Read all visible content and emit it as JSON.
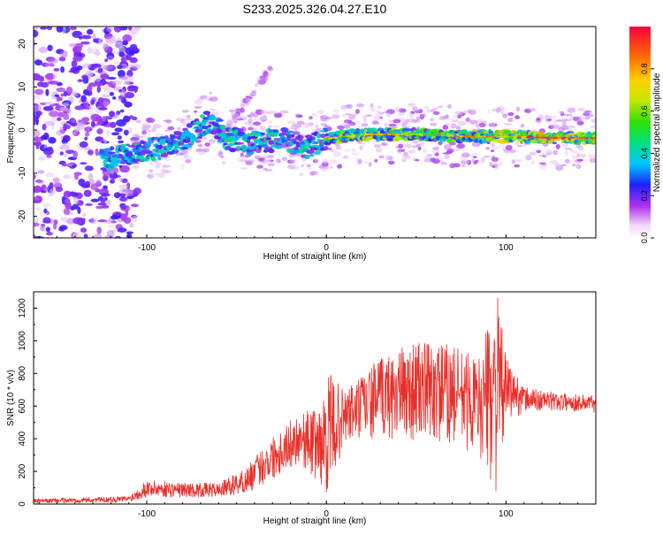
{
  "figure": {
    "title": "S233.2025.326.04.27.E10"
  },
  "chart_data": [
    {
      "type": "heatmap",
      "title": "S233.2025.326.04.27.E10",
      "xlabel": "Height of straight line (km)",
      "ylabel": "Frequency (Hz)",
      "xlim": [
        -163,
        150
      ],
      "ylim": [
        -25,
        24
      ],
      "xticks": [
        -100,
        0,
        100
      ],
      "yticks": [
        -20,
        -10,
        0,
        10,
        20
      ],
      "colorbar": {
        "label": "Normalized spectral amplitude",
        "range": [
          0,
          1
        ],
        "ticks": [
          0.0,
          0.2,
          0.4,
          0.6,
          0.8
        ],
        "colormap": "rainbow (violet to red)"
      },
      "ridge": [
        {
          "x": -125,
          "y": -7
        },
        {
          "x": -105,
          "y": -5
        },
        {
          "x": -90,
          "y": -4
        },
        {
          "x": -75,
          "y": -1
        },
        {
          "x": -65,
          "y": 2
        },
        {
          "x": -55,
          "y": -2
        },
        {
          "x": -40,
          "y": -3
        },
        {
          "x": -25,
          "y": -2
        },
        {
          "x": -10,
          "y": -4
        },
        {
          "x": 0,
          "y": -2
        },
        {
          "x": 20,
          "y": -1
        },
        {
          "x": 50,
          "y": -1
        },
        {
          "x": 80,
          "y": -1.5
        },
        {
          "x": 100,
          "y": -1.5
        },
        {
          "x": 125,
          "y": -1.8
        },
        {
          "x": 150,
          "y": -1.8
        }
      ],
      "grid": false
    },
    {
      "type": "line",
      "xlabel": "Height of straight line (km)",
      "ylabel": "SNR (10 * v/v)",
      "xlim": [
        -163,
        150
      ],
      "ylim": [
        0,
        1300
      ],
      "xticks": [
        -100,
        0,
        100
      ],
      "yticks": [
        0,
        200,
        400,
        600,
        800,
        1000,
        1200
      ],
      "color": "#e8302a",
      "envelope": [
        {
          "x": -163,
          "lo": 5,
          "hi": 30
        },
        {
          "x": -110,
          "lo": 10,
          "hi": 50
        },
        {
          "x": -100,
          "lo": 40,
          "hi": 150
        },
        {
          "x": -80,
          "lo": 40,
          "hi": 130
        },
        {
          "x": -60,
          "lo": 40,
          "hi": 130
        },
        {
          "x": -45,
          "lo": 60,
          "hi": 220
        },
        {
          "x": -30,
          "lo": 150,
          "hi": 420
        },
        {
          "x": -15,
          "lo": 250,
          "hi": 560
        },
        {
          "x": -2,
          "lo": 100,
          "hi": 600
        },
        {
          "x": 0,
          "lo": 40,
          "hi": 820
        },
        {
          "x": 10,
          "lo": 350,
          "hi": 700
        },
        {
          "x": 30,
          "lo": 400,
          "hi": 900
        },
        {
          "x": 50,
          "lo": 380,
          "hi": 1000
        },
        {
          "x": 70,
          "lo": 350,
          "hi": 980
        },
        {
          "x": 85,
          "lo": 300,
          "hi": 900
        },
        {
          "x": 95,
          "lo": 60,
          "hi": 1300
        },
        {
          "x": 100,
          "lo": 500,
          "hi": 900
        },
        {
          "x": 110,
          "lo": 560,
          "hi": 720
        },
        {
          "x": 130,
          "lo": 570,
          "hi": 680
        },
        {
          "x": 150,
          "lo": 560,
          "hi": 670
        }
      ],
      "grid": false
    }
  ]
}
